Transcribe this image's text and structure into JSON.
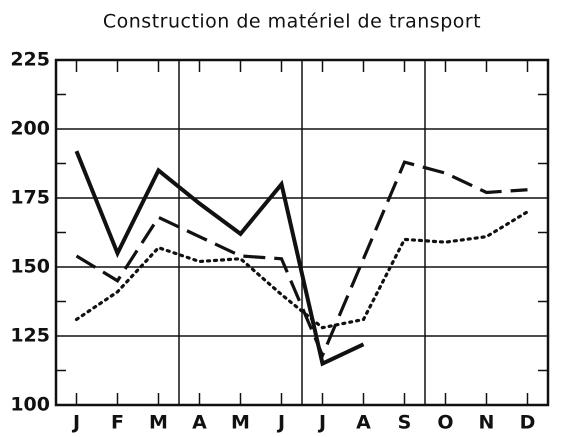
{
  "chart_data": {
    "type": "line",
    "title": "Construction de matériel de transport",
    "categories": [
      "J",
      "F",
      "M",
      "A",
      "M",
      "J",
      "J",
      "A",
      "S",
      "O",
      "N",
      "D"
    ],
    "series": [
      {
        "color": "#111111",
        "style": "solid",
        "values": [
          192,
          155,
          185,
          173,
          162,
          180,
          115,
          122,
          null,
          null,
          null,
          null
        ]
      },
      {
        "color": "#111111",
        "style": "dashed",
        "values": [
          154,
          145,
          168,
          161,
          154,
          153,
          118,
          153,
          188,
          184,
          177,
          178
        ]
      },
      {
        "color": "#111111",
        "style": "dotted",
        "values": [
          131,
          141,
          157,
          152,
          153,
          140,
          128,
          131,
          160,
          159,
          161,
          170
        ]
      }
    ],
    "ylim": [
      100,
      225
    ],
    "yticks": [
      100,
      125,
      150,
      175,
      200,
      225
    ],
    "grid": true
  }
}
